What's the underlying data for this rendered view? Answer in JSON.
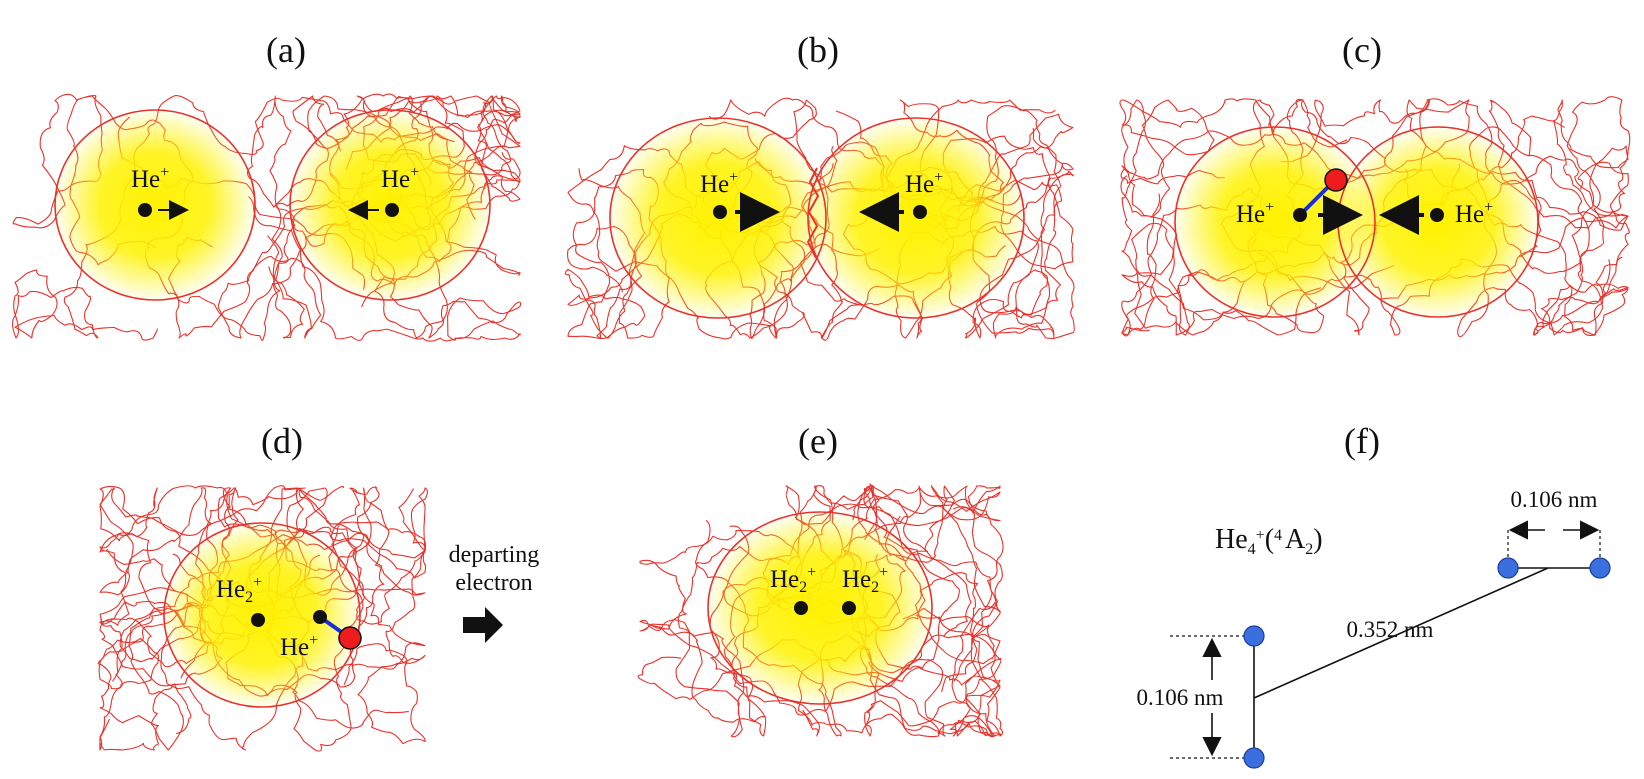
{
  "panels": {
    "a": {
      "label": "(a)",
      "ion_left": "He",
      "ion_left_charge": "+",
      "ion_right": "He",
      "ion_right_charge": "+"
    },
    "b": {
      "label": "(b)",
      "ion_left": "He",
      "ion_left_charge": "+",
      "ion_right": "He",
      "ion_right_charge": "+"
    },
    "c": {
      "label": "(c)",
      "ion_left": "He",
      "ion_left_charge": "+",
      "ion_right": "He",
      "ion_right_charge": "+"
    },
    "d": {
      "label": "(d)",
      "dimer": "He",
      "dimer_sub": "2",
      "dimer_charge": "+",
      "ion": "He",
      "ion_charge": "+",
      "note_line1": "departing",
      "note_line2": "electron"
    },
    "e": {
      "label": "(e)",
      "dimer1": "He",
      "dimer1_sub": "2",
      "dimer1_charge": "+",
      "dimer2": "He",
      "dimer2_sub": "2",
      "dimer2_charge": "+"
    },
    "f": {
      "label": "(f)",
      "formula_base": "He",
      "formula_sub": "4",
      "formula_charge": "+",
      "formula_paren_open": "(",
      "formula_state_sup": "4",
      "formula_state": "A",
      "formula_state_sub": "2",
      "formula_paren_close": ")",
      "dim_top": "0.106  nm",
      "dim_diag": "0.352  nm",
      "dim_left": "0.106  nm"
    }
  },
  "colors": {
    "scribble": "#e8322b",
    "glow": "#fff200",
    "electron": "#ee1c1c",
    "bond": "#1a2fd6",
    "atom": "#3b6fe0",
    "ink": "#111111"
  }
}
